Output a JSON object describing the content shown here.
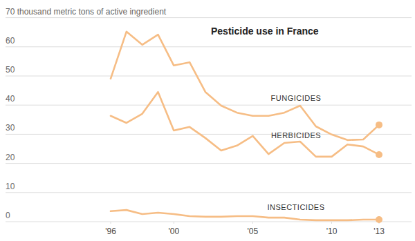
{
  "chart_data": {
    "type": "line",
    "title": "Pesticide use in France",
    "x": [
      1996,
      1997,
      1998,
      1999,
      2000,
      2001,
      2002,
      2003,
      2004,
      2005,
      2006,
      2007,
      2008,
      2009,
      2010,
      2011,
      2012,
      2013
    ],
    "series": [
      {
        "name": "FUNGICIDES",
        "color": "#f6bd85",
        "values": [
          49.1,
          65.2,
          60.7,
          64.2,
          53.6,
          54.7,
          44.5,
          39.8,
          37.4,
          36.3,
          36.3,
          37.4,
          39.8,
          32.7,
          29.9,
          28.0,
          28.2,
          33.2
        ]
      },
      {
        "name": "HERBICIDES",
        "color": "#f6bd85",
        "values": [
          36.3,
          33.9,
          37.0,
          44.5,
          31.3,
          32.5,
          28.7,
          24.4,
          26.1,
          29.4,
          23.2,
          27.0,
          27.5,
          22.3,
          22.3,
          26.5,
          25.8,
          23.0
        ]
      },
      {
        "name": "INSECTICIDES",
        "color": "#f6bd85",
        "values": [
          3.6,
          4.0,
          2.6,
          3.1,
          2.6,
          1.9,
          1.7,
          1.7,
          1.9,
          1.9,
          1.4,
          1.4,
          0.7,
          0.5,
          0.5,
          0.5,
          0.7,
          0.7
        ]
      }
    ],
    "xlim": [
      1996,
      2013
    ],
    "xticks": [
      {
        "value": 1996,
        "label": "'96"
      },
      {
        "value": 2000,
        "label": "'00"
      },
      {
        "value": 2005,
        "label": "'05"
      },
      {
        "value": 2010,
        "label": "'10"
      },
      {
        "value": 2013,
        "label": "'13"
      }
    ],
    "ylim": [
      0,
      70
    ],
    "yticks": [
      0,
      10,
      20,
      30,
      40,
      50,
      60,
      {
        "value": 70,
        "label": "70 thousand metric tons of active ingredient"
      }
    ],
    "grid": true,
    "marker": "end"
  }
}
